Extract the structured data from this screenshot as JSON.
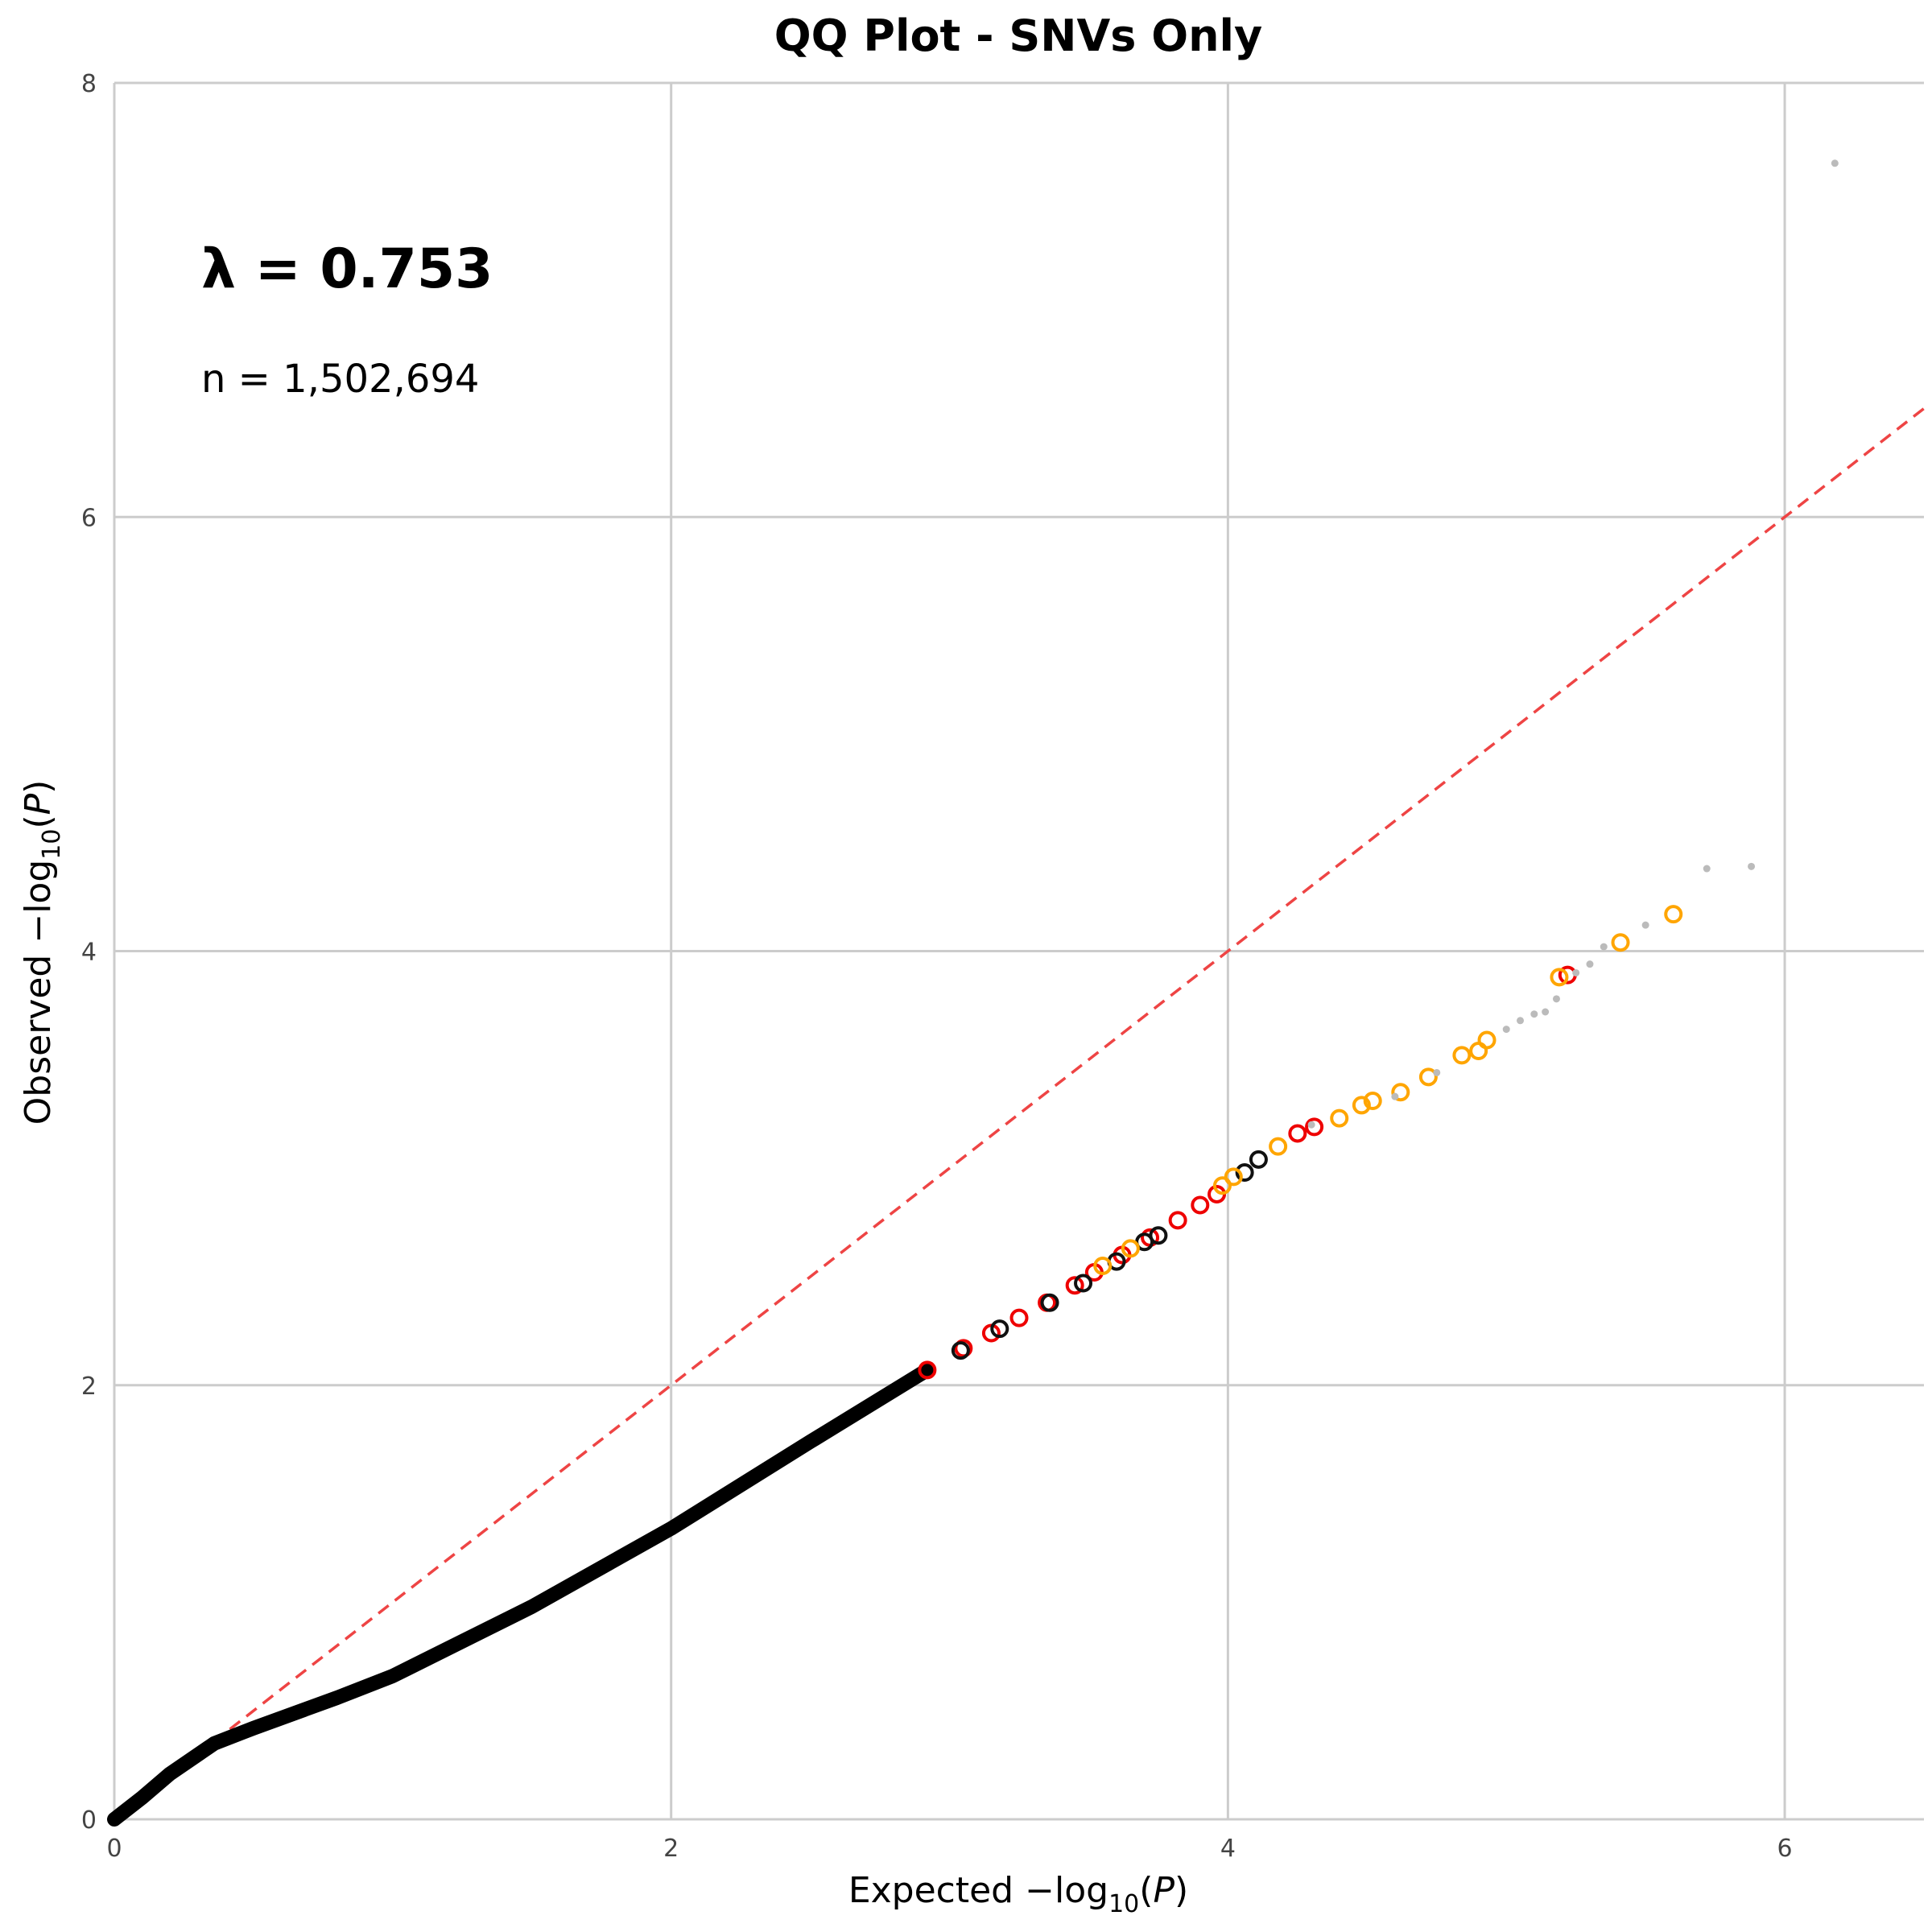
{
  "chart_data": {
    "type": "scatter",
    "title": "QQ Plot - SNVs Only",
    "xlabel_prefix": "Expected",
    "ylabel_prefix": "Observed",
    "axis_label_math": "−log",
    "axis_label_sub": "10",
    "axis_label_var": "P",
    "xlim": [
      0,
      6.5
    ],
    "ylim": [
      0,
      8
    ],
    "xticks": [
      0,
      2,
      4,
      6
    ],
    "yticks": [
      0,
      2,
      4,
      6,
      8
    ],
    "x_tick_labels": [
      "0",
      "2",
      "4",
      "6"
    ],
    "y_tick_labels": [
      "0",
      "2",
      "4",
      "6",
      "8"
    ],
    "grid": true,
    "annotations": {
      "lambda_text": "λ = 0.753",
      "n_text": "n = 1,502,694"
    },
    "reference_line": {
      "style": "dashed",
      "color": "#ee4444",
      "slope": 1
    },
    "colors": {
      "bulk": "#000000",
      "gray": "#bbbbbb",
      "orange": "#ffa500",
      "red": "#ee0000",
      "black_ring": "#111111",
      "grid": "#cccccc"
    },
    "bulk_curve": [
      [
        0,
        0
      ],
      [
        0.1,
        0.1
      ],
      [
        0.2,
        0.21
      ],
      [
        0.36,
        0.35
      ],
      [
        0.5,
        0.42
      ],
      [
        0.8,
        0.56
      ],
      [
        1.0,
        0.66
      ],
      [
        1.5,
        0.98
      ],
      [
        2.0,
        1.34
      ],
      [
        2.5,
        1.74
      ],
      [
        2.92,
        2.07
      ]
    ],
    "series": [
      {
        "name": "",
        "marker": "ring",
        "color_key": "red",
        "points": [
          [
            2.92,
            2.07
          ],
          [
            3.05,
            2.17
          ],
          [
            3.15,
            2.24
          ],
          [
            3.25,
            2.31
          ],
          [
            3.35,
            2.38
          ],
          [
            3.45,
            2.46
          ],
          [
            3.52,
            2.52
          ],
          [
            3.62,
            2.6
          ],
          [
            3.72,
            2.68
          ],
          [
            3.82,
            2.76
          ],
          [
            3.9,
            2.83
          ],
          [
            3.96,
            2.88
          ],
          [
            4.25,
            3.16
          ],
          [
            4.31,
            3.19
          ],
          [
            5.22,
            3.89
          ]
        ]
      },
      {
        "name": "",
        "marker": "ring",
        "color_key": "black_ring",
        "points": [
          [
            3.04,
            2.16
          ],
          [
            3.18,
            2.26
          ],
          [
            3.36,
            2.38
          ],
          [
            3.48,
            2.47
          ],
          [
            3.6,
            2.57
          ],
          [
            3.7,
            2.66
          ],
          [
            3.75,
            2.69
          ],
          [
            4.06,
            2.98
          ],
          [
            4.11,
            3.04
          ]
        ]
      },
      {
        "name": "",
        "marker": "ring",
        "color_key": "orange",
        "points": [
          [
            3.55,
            2.55
          ],
          [
            3.65,
            2.63
          ],
          [
            3.98,
            2.92
          ],
          [
            4.02,
            2.96
          ],
          [
            4.18,
            3.1
          ],
          [
            4.4,
            3.23
          ],
          [
            4.48,
            3.29
          ],
          [
            4.52,
            3.31
          ],
          [
            4.62,
            3.35
          ],
          [
            4.72,
            3.42
          ],
          [
            4.84,
            3.52
          ],
          [
            4.9,
            3.54
          ],
          [
            4.93,
            3.59
          ],
          [
            5.19,
            3.88
          ],
          [
            5.41,
            4.04
          ],
          [
            5.6,
            4.17
          ]
        ]
      },
      {
        "name": "",
        "marker": "dot",
        "color_key": "gray",
        "points": [
          [
            4.3,
            3.2
          ],
          [
            4.6,
            3.33
          ],
          [
            4.75,
            3.44
          ],
          [
            5.0,
            3.64
          ],
          [
            5.05,
            3.68
          ],
          [
            5.1,
            3.71
          ],
          [
            5.14,
            3.72
          ],
          [
            5.18,
            3.78
          ],
          [
            5.25,
            3.9
          ],
          [
            5.3,
            3.94
          ],
          [
            5.35,
            4.02
          ],
          [
            5.5,
            4.12
          ],
          [
            5.72,
            4.38
          ],
          [
            5.88,
            4.39
          ],
          [
            6.18,
            7.63
          ]
        ]
      }
    ]
  }
}
